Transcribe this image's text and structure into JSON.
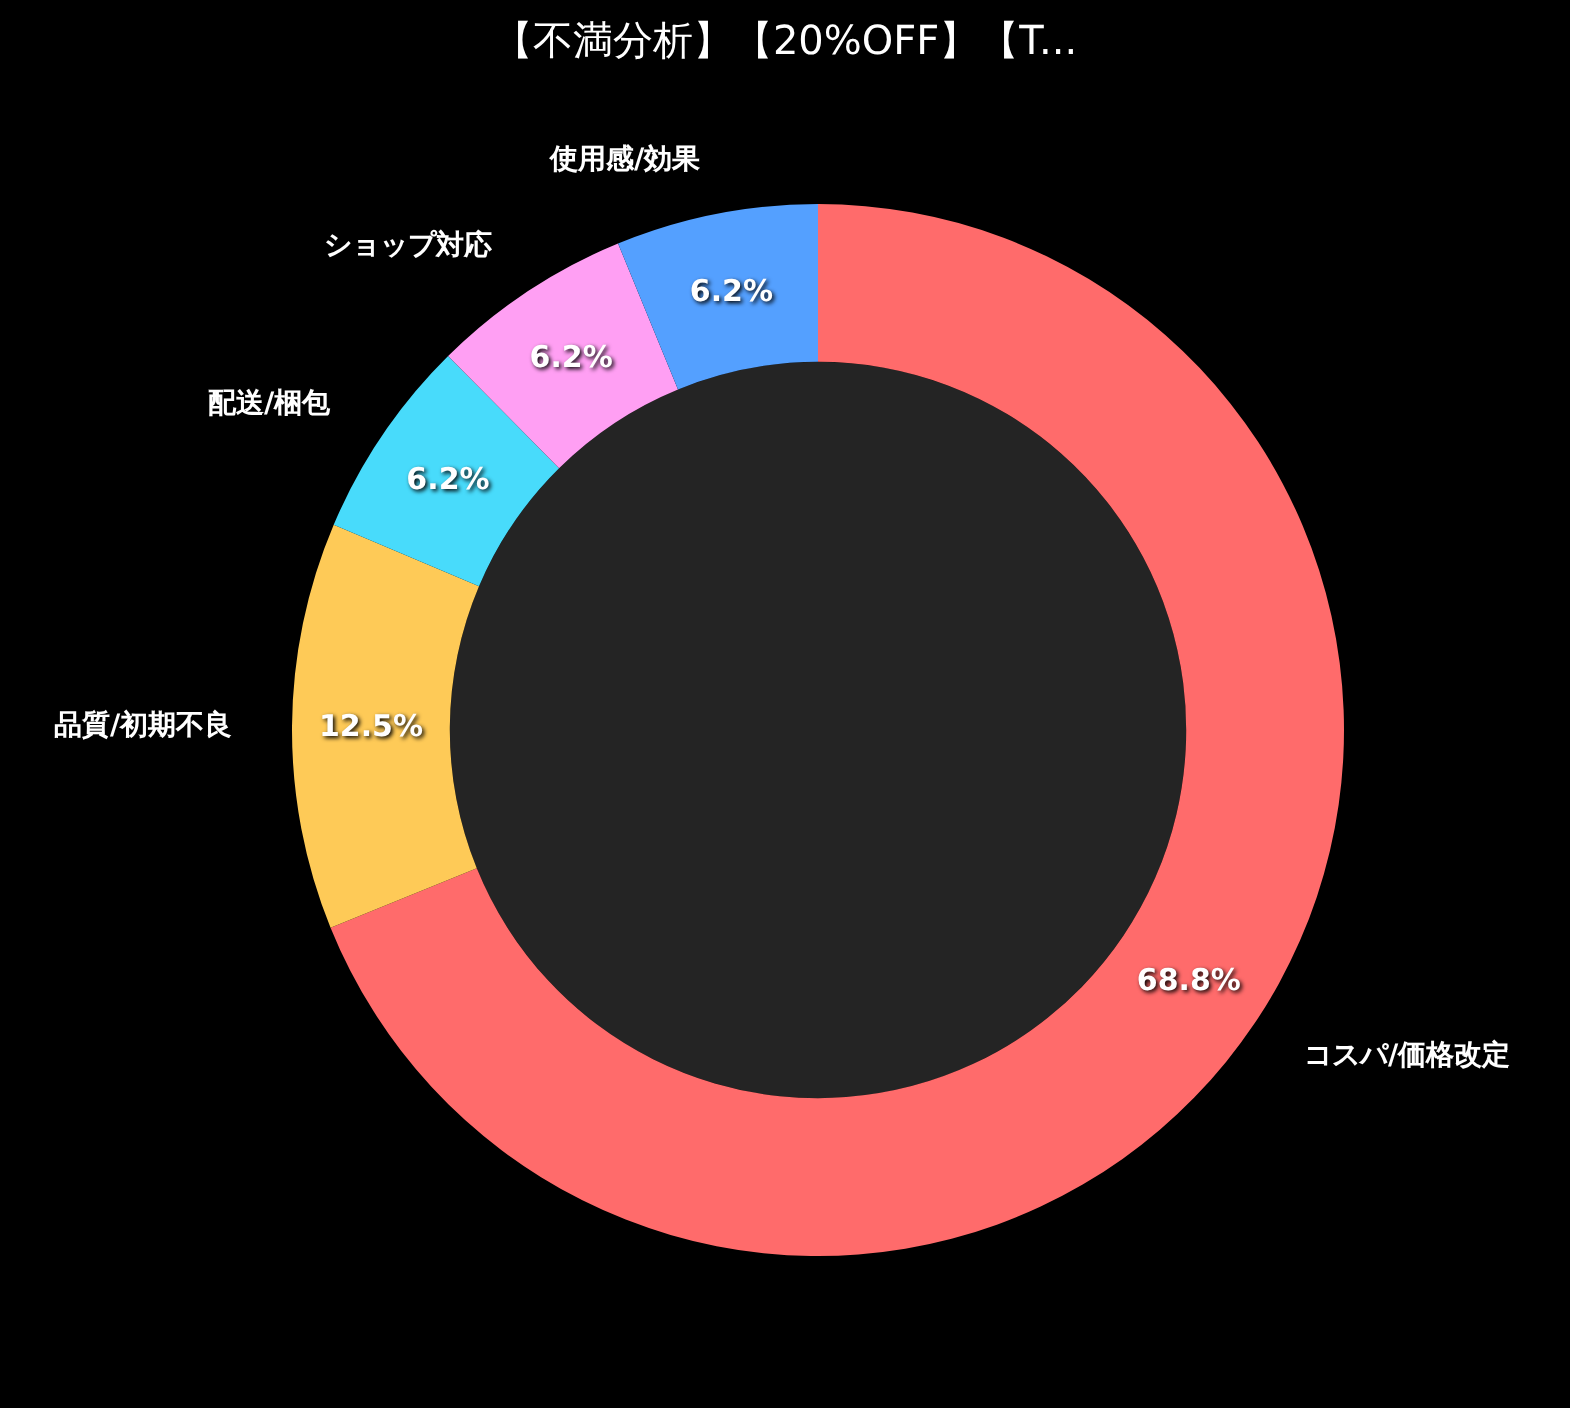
{
  "chart_data": {
    "type": "donut",
    "title": "【不満分析】【20%OFF】【T...",
    "categories": [
      "コスパ/価格改定",
      "品質/初期不良",
      "配送/梱包",
      "ショップ対応",
      "使用感/効果"
    ],
    "values": [
      68.8,
      12.5,
      6.2,
      6.2,
      6.2
    ],
    "colors": [
      "#ff6b6b",
      "#feca57",
      "#48dbfb",
      "#ff9ff3",
      "#54a0ff"
    ],
    "value_labels": [
      "68.8%",
      "12.5%",
      "6.2%",
      "6.2%",
      "6.2%"
    ],
    "legend": false
  }
}
